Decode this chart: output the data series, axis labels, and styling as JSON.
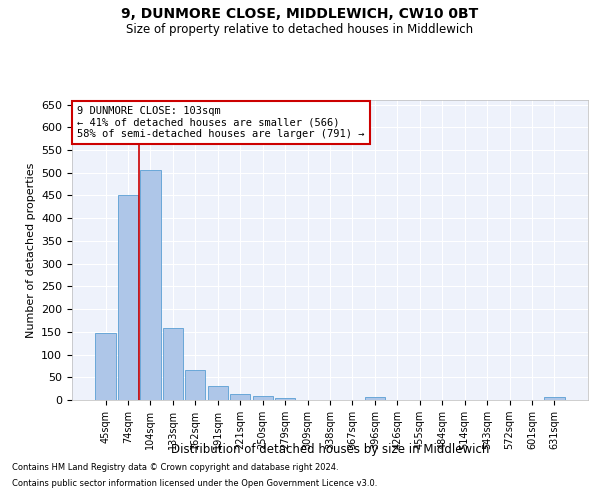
{
  "title1": "9, DUNMORE CLOSE, MIDDLEWICH, CW10 0BT",
  "title2": "Size of property relative to detached houses in Middlewich",
  "xlabel": "Distribution of detached houses by size in Middlewich",
  "ylabel": "Number of detached properties",
  "categories": [
    "45sqm",
    "74sqm",
    "104sqm",
    "133sqm",
    "162sqm",
    "191sqm",
    "221sqm",
    "250sqm",
    "279sqm",
    "309sqm",
    "338sqm",
    "367sqm",
    "396sqm",
    "426sqm",
    "455sqm",
    "484sqm",
    "514sqm",
    "543sqm",
    "572sqm",
    "601sqm",
    "631sqm"
  ],
  "values": [
    148,
    450,
    507,
    158,
    67,
    30,
    13,
    9,
    5,
    0,
    0,
    0,
    6,
    0,
    0,
    0,
    0,
    0,
    0,
    0,
    6
  ],
  "bar_color": "#aec6e8",
  "bar_edge_color": "#5a9fd4",
  "vline_x": 1.5,
  "vline_color": "#cc0000",
  "annotation_text": "9 DUNMORE CLOSE: 103sqm\n← 41% of detached houses are smaller (566)\n58% of semi-detached houses are larger (791) →",
  "annotation_box_color": "#ffffff",
  "annotation_box_edge_color": "#cc0000",
  "ylim": [
    0,
    660
  ],
  "yticks": [
    0,
    50,
    100,
    150,
    200,
    250,
    300,
    350,
    400,
    450,
    500,
    550,
    600,
    650
  ],
  "background_color": "#eef2fb",
  "grid_color": "#ffffff",
  "footer1": "Contains HM Land Registry data © Crown copyright and database right 2024.",
  "footer2": "Contains public sector information licensed under the Open Government Licence v3.0."
}
